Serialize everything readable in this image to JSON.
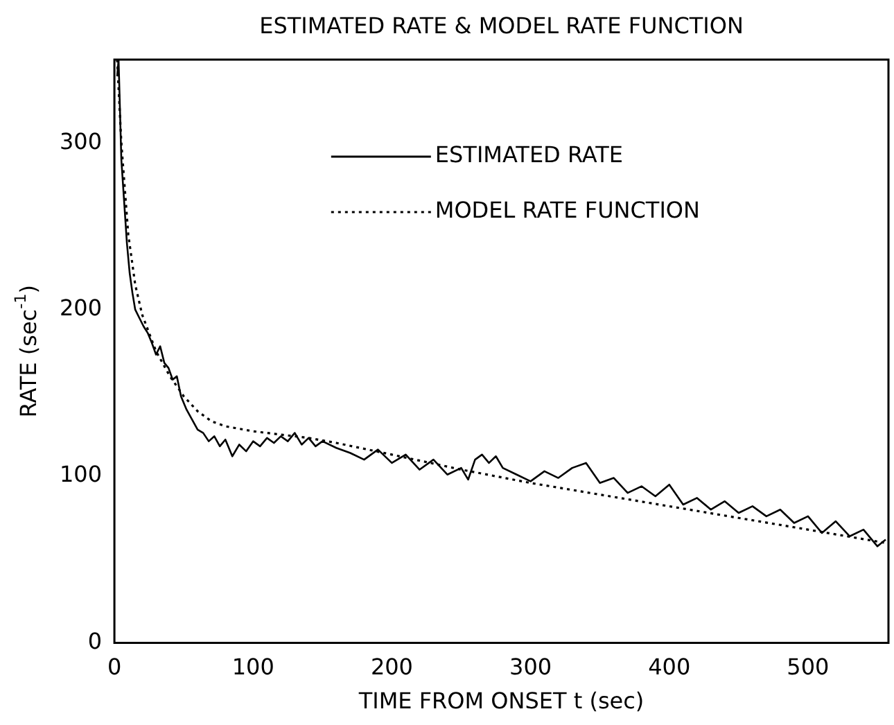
{
  "chart_data": {
    "type": "line",
    "title": "ESTIMATED RATE & MODEL RATE FUNCTION",
    "xlabel": "TIME FROM ONSET t (sec)",
    "ylabel": "RATE (sec$^{-1}$)",
    "xlim": [
      0,
      558
    ],
    "xticks": [
      0,
      100,
      200,
      300,
      400,
      500
    ],
    "ylim": [
      0,
      350
    ],
    "yticks": [
      0,
      100,
      200,
      300
    ],
    "grid": false,
    "legend": "top right",
    "marker": "none",
    "series": [
      {
        "name": "ESTIMATED RATE",
        "color": "#000000",
        "line_style": "solid",
        "x": [
          2,
          3,
          4,
          5,
          7,
          9,
          11,
          13,
          15,
          18,
          21,
          24,
          27,
          30,
          33,
          36,
          39,
          42,
          45,
          48,
          52,
          56,
          60,
          64,
          68,
          72,
          76,
          80,
          85,
          90,
          95,
          100,
          105,
          110,
          115,
          120,
          125,
          130,
          135,
          140,
          145,
          150,
          160,
          170,
          180,
          190,
          200,
          210,
          220,
          230,
          240,
          250,
          255,
          260,
          265,
          270,
          275,
          280,
          290,
          300,
          310,
          320,
          330,
          340,
          350,
          360,
          370,
          380,
          390,
          400,
          410,
          420,
          430,
          440,
          450,
          460,
          470,
          480,
          490,
          500,
          510,
          520,
          530,
          540,
          550,
          556
        ],
        "values": [
          340,
          350,
          320,
          290,
          265,
          240,
          222,
          210,
          200,
          195,
          190,
          186,
          180,
          173,
          178,
          168,
          165,
          158,
          160,
          148,
          140,
          134,
          128,
          126,
          121,
          124,
          118,
          122,
          112,
          119,
          115,
          121,
          118,
          123,
          120,
          124,
          121,
          126,
          119,
          123,
          118,
          121,
          117,
          114,
          110,
          116,
          108,
          113,
          104,
          110,
          101,
          105,
          98,
          110,
          113,
          108,
          112,
          105,
          101,
          97,
          103,
          99,
          105,
          108,
          96,
          99,
          90,
          94,
          88,
          95,
          83,
          87,
          80,
          85,
          78,
          82,
          76,
          80,
          72,
          76,
          66,
          73,
          64,
          68,
          58,
          62
        ]
      },
      {
        "name": "MODEL RATE FUNCTION",
        "color": "#000000",
        "line_style": "dotted",
        "x": [
          2,
          5,
          10,
          15,
          20,
          30,
          40,
          50,
          60,
          70,
          80,
          100,
          120,
          140,
          160,
          200,
          250,
          300,
          350,
          400,
          450,
          500,
          556
        ],
        "values": [
          350,
          300,
          245,
          215,
          197,
          175,
          160,
          148,
          139,
          133,
          130,
          127,
          125,
          123,
          120,
          113,
          104,
          96,
          89,
          82,
          75,
          68,
          60
        ]
      }
    ]
  }
}
